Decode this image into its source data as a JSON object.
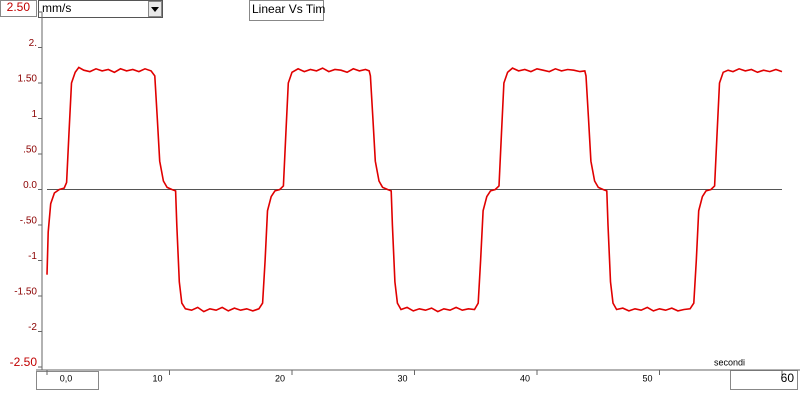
{
  "chart_data": {
    "type": "line",
    "title": "Linear Vs Tim",
    "y_label": "mm/s",
    "x_label": "secondi",
    "xlim": [
      0,
      60
    ],
    "ylim": [
      -2.5,
      2.5
    ],
    "xticks": [
      {
        "value": 0,
        "label": "0,0"
      },
      10,
      20,
      30,
      40,
      50,
      60
    ],
    "yticks": [
      {
        "value": 2.5,
        "label": "2.50"
      },
      {
        "value": 2,
        "label": "2."
      },
      {
        "value": 1.5,
        "label": "1.50"
      },
      1,
      {
        "value": 0.5,
        "label": ".50"
      },
      {
        "value": 0,
        "label": "0.0"
      },
      {
        "value": -0.5,
        "label": "-.50"
      },
      -1,
      {
        "value": -1.5,
        "label": "-1.50"
      },
      -2,
      {
        "value": -2.5,
        "label": "-2.50"
      }
    ],
    "series": [
      {
        "color": "#e00000",
        "x": [
          0,
          0.1,
          0.3,
          0.6,
          1.0,
          1.4,
          1.6,
          1.8,
          2.0,
          2.3,
          2.6,
          3,
          3.5,
          4,
          4.5,
          5,
          5.5,
          6,
          6.5,
          7,
          7.5,
          8,
          8.5,
          8.8,
          9.0,
          9.2,
          9.5,
          9.8,
          10.2,
          10.5,
          10.6,
          10.8,
          11.0,
          11.3,
          11.8,
          12.3,
          12.8,
          13.3,
          13.8,
          14.3,
          14.8,
          15.3,
          15.8,
          16.3,
          16.8,
          17.3,
          17.6,
          17.8,
          18.0,
          18.3,
          18.6,
          19.0,
          19.3,
          19.5,
          19.7,
          20.0,
          20.5,
          21,
          21.5,
          22,
          22.5,
          23,
          23.5,
          24,
          24.5,
          25,
          25.5,
          26,
          26.3,
          26.4,
          26.6,
          26.8,
          27.1,
          27.4,
          27.8,
          28.1,
          28.2,
          28.4,
          28.6,
          28.9,
          29.4,
          29.9,
          30.4,
          30.9,
          31.4,
          31.9,
          32.4,
          32.9,
          33.4,
          33.9,
          34.4,
          34.9,
          35.2,
          35.4,
          35.6,
          35.9,
          36.2,
          36.6,
          36.9,
          37.1,
          37.3,
          37.6,
          38,
          38.5,
          39,
          39.5,
          40,
          40.5,
          41,
          41.5,
          42,
          42.5,
          43,
          43.5,
          43.9,
          44.0,
          44.2,
          44.4,
          44.7,
          45.0,
          45.4,
          45.7,
          45.8,
          46.0,
          46.2,
          46.5,
          47,
          47.5,
          48,
          48.5,
          49,
          49.5,
          50,
          50.5,
          51,
          51.5,
          52,
          52.5,
          52.8,
          53.0,
          53.2,
          53.5,
          53.8,
          54.2,
          54.5,
          54.7,
          54.9,
          55.2,
          55.6,
          56,
          56.5,
          57,
          57.5,
          58,
          58.5,
          59,
          59.5,
          60
        ],
        "values": [
          -1.2,
          -0.6,
          -0.2,
          -0.05,
          0.0,
          0.02,
          0.1,
          0.8,
          1.5,
          1.65,
          1.72,
          1.68,
          1.66,
          1.7,
          1.67,
          1.69,
          1.65,
          1.7,
          1.67,
          1.69,
          1.66,
          1.7,
          1.67,
          1.6,
          1.0,
          0.4,
          0.12,
          0.03,
          0.0,
          -0.02,
          -0.5,
          -1.3,
          -1.6,
          -1.68,
          -1.7,
          -1.66,
          -1.72,
          -1.68,
          -1.7,
          -1.66,
          -1.71,
          -1.67,
          -1.7,
          -1.68,
          -1.71,
          -1.68,
          -1.6,
          -1.0,
          -0.3,
          -0.1,
          -0.02,
          0.0,
          0.05,
          0.8,
          1.5,
          1.65,
          1.7,
          1.66,
          1.69,
          1.67,
          1.71,
          1.66,
          1.69,
          1.68,
          1.65,
          1.7,
          1.67,
          1.69,
          1.67,
          1.6,
          1.0,
          0.4,
          0.12,
          0.03,
          0.0,
          -0.02,
          -0.5,
          -1.3,
          -1.6,
          -1.69,
          -1.66,
          -1.71,
          -1.68,
          -1.7,
          -1.67,
          -1.72,
          -1.68,
          -1.7,
          -1.66,
          -1.7,
          -1.68,
          -1.69,
          -1.6,
          -1.0,
          -0.3,
          -0.1,
          -0.02,
          0.0,
          0.05,
          0.8,
          1.5,
          1.65,
          1.71,
          1.67,
          1.69,
          1.66,
          1.7,
          1.68,
          1.66,
          1.7,
          1.67,
          1.69,
          1.68,
          1.66,
          1.67,
          1.6,
          1.0,
          0.4,
          0.12,
          0.03,
          0.0,
          -0.02,
          -0.5,
          -1.3,
          -1.6,
          -1.69,
          -1.67,
          -1.71,
          -1.68,
          -1.7,
          -1.66,
          -1.71,
          -1.68,
          -1.7,
          -1.67,
          -1.71,
          -1.69,
          -1.68,
          -1.6,
          -1.0,
          -0.3,
          -0.1,
          -0.02,
          0.0,
          0.05,
          0.8,
          1.5,
          1.65,
          1.68,
          1.66,
          1.7,
          1.67,
          1.69,
          1.65,
          1.68,
          1.66,
          1.69,
          1.66
        ]
      }
    ]
  }
}
